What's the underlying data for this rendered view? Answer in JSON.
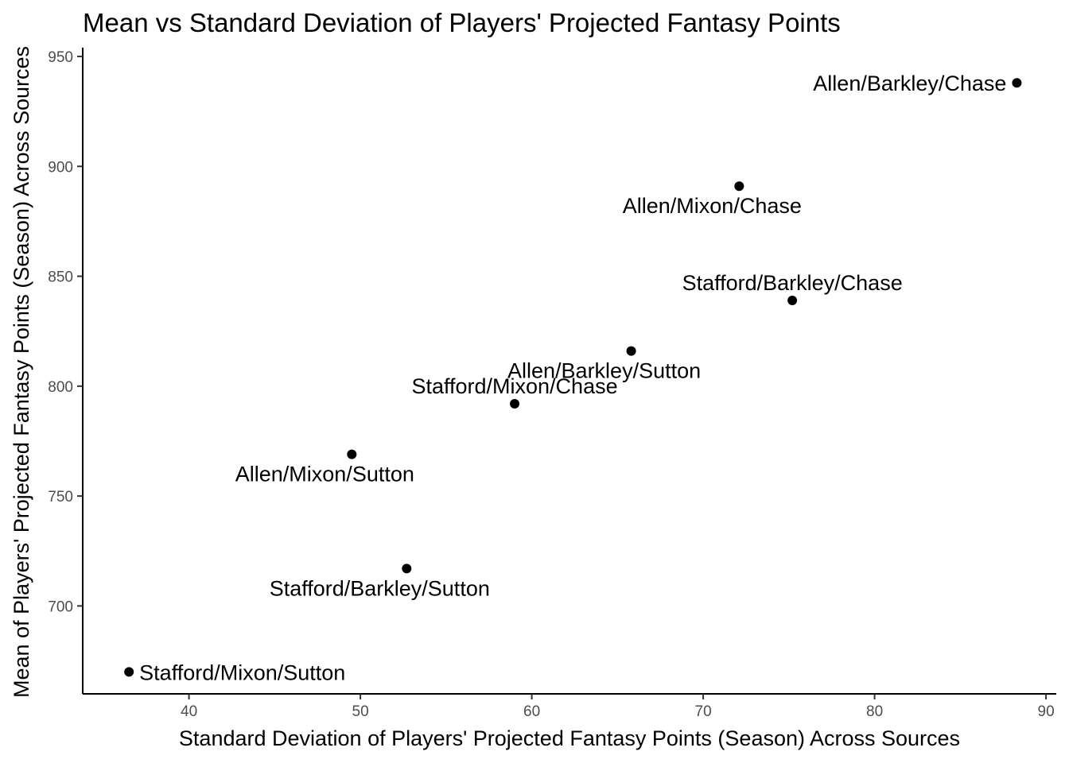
{
  "chart_data": {
    "type": "scatter",
    "title": "Mean vs Standard Deviation of Players' Projected Fantasy Points",
    "xlabel": "Standard Deviation of Players' Projected Fantasy Points (Season) Across Sources",
    "ylabel": "Mean of Players' Projected Fantasy Points (Season) Across Sources",
    "xlim": [
      33.8,
      90.6
    ],
    "ylim": [
      660,
      954
    ],
    "x_ticks": [
      40,
      50,
      60,
      70,
      80,
      90
    ],
    "y_ticks": [
      700,
      750,
      800,
      850,
      900,
      950
    ],
    "grid": false,
    "legend": "none",
    "point_color": "#000000",
    "points": [
      {
        "label": "Allen/Barkley/Chase",
        "x": 88.3,
        "y": 938,
        "label_pos": "left"
      },
      {
        "label": "Allen/Mixon/Chase",
        "x": 72.1,
        "y": 891,
        "label_pos": "below"
      },
      {
        "label": "Stafford/Barkley/Chase",
        "x": 75.2,
        "y": 839,
        "label_pos": "above"
      },
      {
        "label": "Allen/Barkley/Sutton",
        "x": 65.8,
        "y": 816,
        "label_pos": "below"
      },
      {
        "label": "Stafford/Mixon/Chase",
        "x": 59.0,
        "y": 792,
        "label_pos": "above"
      },
      {
        "label": "Allen/Mixon/Sutton",
        "x": 49.5,
        "y": 769,
        "label_pos": "below"
      },
      {
        "label": "Stafford/Barkley/Sutton",
        "x": 52.7,
        "y": 717,
        "label_pos": "below"
      },
      {
        "label": "Stafford/Mixon/Sutton",
        "x": 36.5,
        "y": 670,
        "label_pos": "right"
      }
    ]
  }
}
